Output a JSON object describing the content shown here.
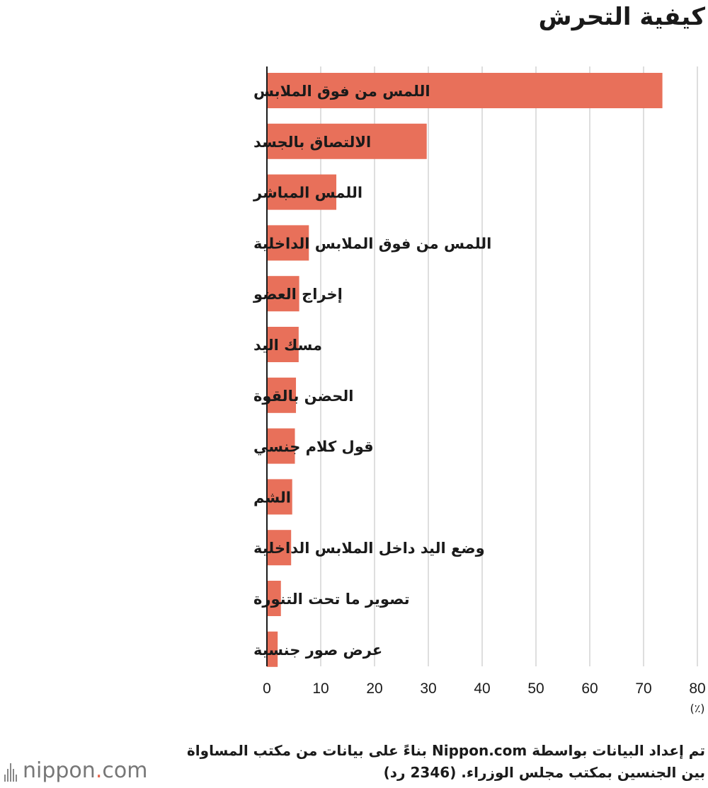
{
  "page": {
    "title": "كيفية التحرش"
  },
  "chart_data": {
    "type": "bar",
    "orientation": "horizontal",
    "title": "كيفية التحرش",
    "unit_label": "(٪)",
    "categories": [
      "اللمس من فوق الملابس",
      "الالتصاق بالجسد",
      "اللمس المباشر",
      "اللمس من فوق الملابس الداخلية",
      "إخراج العضو",
      "مسك اليد",
      "الحضن بالقوة",
      "قول كلام جنسي",
      "الشم",
      "وضع اليد داخل الملابس الداخلية",
      "تصوير ما تحت التنورة",
      "عرض صور جنسية"
    ],
    "values": [
      73.5,
      29.7,
      12.9,
      7.8,
      6.0,
      5.9,
      5.4,
      5.2,
      4.7,
      4.5,
      2.6,
      2.0
    ],
    "xlim": [
      0,
      80
    ],
    "xticks": [
      0,
      10,
      20,
      30,
      40,
      50,
      60,
      70,
      80
    ],
    "grid": true,
    "bar_color": "#e8705a",
    "grid_color": "#d4d4d4"
  },
  "source": {
    "line1": "تم إعداد البيانات بواسطة Nippon.com بناءً على بيانات من مكتب المساواة",
    "line2": "بين الجنسين بمكتب مجلس الوزراء. (2346 رد)"
  },
  "logo": {
    "text_main": "nippon",
    "text_dot": ".",
    "text_tld": "com"
  }
}
